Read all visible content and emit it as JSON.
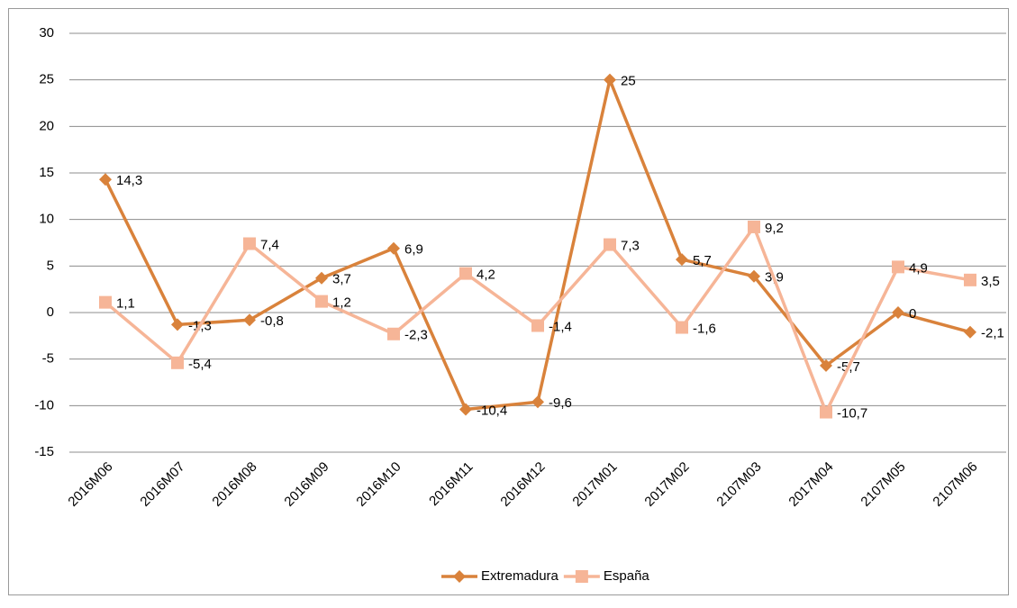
{
  "chart_data": {
    "type": "line",
    "categories": [
      "2016M06",
      "2016M07",
      "2016M08",
      "2016M09",
      "2016M10",
      "2016M11",
      "2016M12",
      "2017M01",
      "2017M02",
      "2107M03",
      "2017M04",
      "2107M05",
      "2107M06"
    ],
    "series": [
      {
        "name": "Extremadura",
        "color": "#d9823b",
        "marker": "diamond",
        "values": [
          14.3,
          -1.3,
          -0.8,
          3.7,
          6.9,
          -10.4,
          -9.6,
          25,
          5.7,
          3.9,
          -5.7,
          0,
          -2.1
        ],
        "value_labels": [
          "14,3",
          "-1,3",
          "-0,8",
          "3,7",
          "6,9",
          "-10,4",
          "-9,6",
          "25",
          "5,7",
          "3,9",
          "-5,7",
          "0",
          "-2,1"
        ]
      },
      {
        "name": "España",
        "color": "#f6b597",
        "marker": "square",
        "values": [
          1.1,
          -5.4,
          7.4,
          1.2,
          -2.3,
          4.2,
          -1.4,
          7.3,
          -1.6,
          9.2,
          -10.7,
          4.9,
          3.5
        ],
        "value_labels": [
          "1,1",
          "-5,4",
          "7,4",
          "1,2",
          "-2,3",
          "4,2",
          "-1,4",
          "7,3",
          "-1,6",
          "9,2",
          "-10,7",
          "4,9",
          "3,5"
        ]
      }
    ],
    "ylim": [
      -15,
      30
    ],
    "yticks": [
      -15,
      -10,
      -5,
      0,
      5,
      10,
      15,
      20,
      25,
      30
    ],
    "grid": true,
    "legend": "bottom"
  }
}
